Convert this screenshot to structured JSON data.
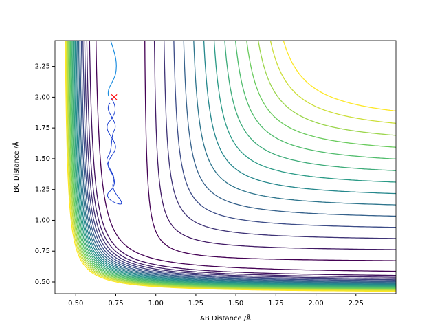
{
  "chart_data": {
    "type": "contour",
    "xlabel": "AB Distance /Å",
    "ylabel": "BC Distance /Å",
    "xlim": [
      0.37,
      2.5
    ],
    "ylim": [
      0.405,
      2.46
    ],
    "xticks": [
      {
        "value": 0.5,
        "label": "0.50"
      },
      {
        "value": 0.75,
        "label": "0.75"
      },
      {
        "value": 1.0,
        "label": "1.00"
      },
      {
        "value": 1.25,
        "label": "1.25"
      },
      {
        "value": 1.5,
        "label": "1.50"
      },
      {
        "value": 1.75,
        "label": "1.75"
      },
      {
        "value": 2.0,
        "label": "2.00"
      },
      {
        "value": 2.25,
        "label": "2.25"
      }
    ],
    "yticks": [
      {
        "value": 0.5,
        "label": "0.50"
      },
      {
        "value": 0.75,
        "label": "0.75"
      },
      {
        "value": 1.0,
        "label": "1.00"
      },
      {
        "value": 1.25,
        "label": "1.25"
      },
      {
        "value": 1.5,
        "label": "1.50"
      },
      {
        "value": 1.75,
        "label": "1.75"
      },
      {
        "value": 2.0,
        "label": "2.00"
      },
      {
        "value": 2.25,
        "label": "2.25"
      }
    ],
    "start_point": {
      "x": 0.74,
      "y": 2.0,
      "color": "#ff0000"
    }
  }
}
